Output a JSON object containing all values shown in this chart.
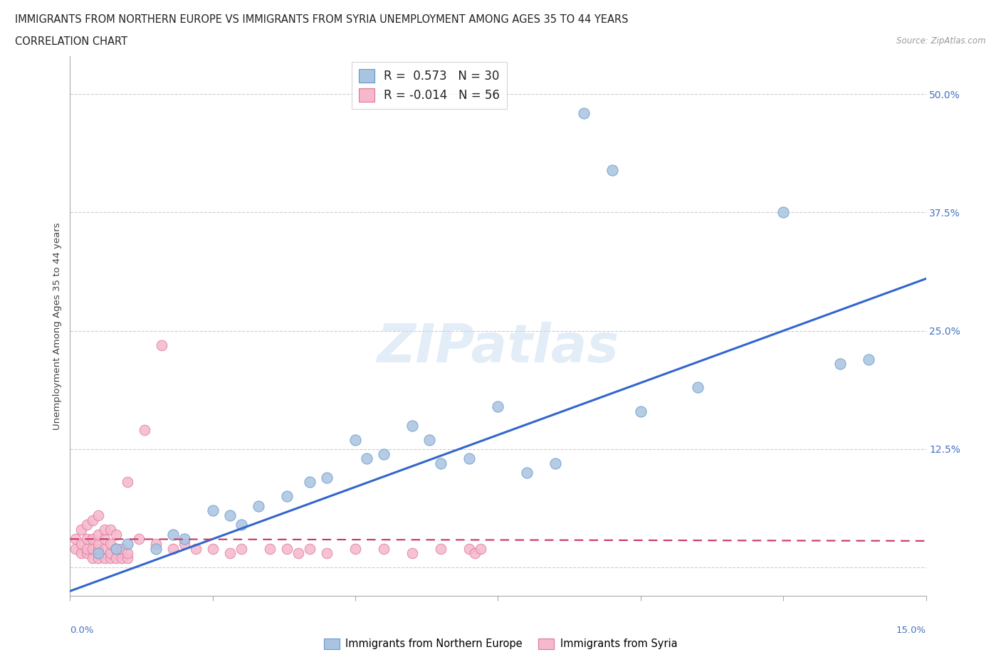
{
  "title_line1": "IMMIGRANTS FROM NORTHERN EUROPE VS IMMIGRANTS FROM SYRIA UNEMPLOYMENT AMONG AGES 35 TO 44 YEARS",
  "title_line2": "CORRELATION CHART",
  "source_text": "Source: ZipAtlas.com",
  "ylabel": "Unemployment Among Ages 35 to 44 years",
  "watermark": "ZIPatlas",
  "blue_R": 0.573,
  "blue_N": 30,
  "pink_R": -0.014,
  "pink_N": 56,
  "blue_color": "#a8c4e0",
  "blue_edge": "#6699cc",
  "pink_color": "#f5b8cc",
  "pink_edge": "#dd7799",
  "trend_blue": "#3366cc",
  "trend_pink": "#cc3366",
  "tick_color": "#4472c4",
  "grid_color": "#cccccc",
  "bg_color": "#ffffff",
  "xmin": 0.0,
  "xmax": 0.15,
  "ymin": -0.03,
  "ymax": 0.54,
  "yticks": [
    0.0,
    0.125,
    0.25,
    0.375,
    0.5
  ],
  "ytick_labels": [
    "",
    "12.5%",
    "25.0%",
    "37.5%",
    "50.0%"
  ],
  "blue_x": [
    0.005,
    0.008,
    0.01,
    0.015,
    0.018,
    0.02,
    0.025,
    0.028,
    0.03,
    0.033,
    0.038,
    0.042,
    0.045,
    0.05,
    0.052,
    0.055,
    0.06,
    0.063,
    0.065,
    0.07,
    0.075,
    0.08,
    0.085,
    0.09,
    0.095,
    0.1,
    0.11,
    0.125,
    0.135,
    0.14
  ],
  "blue_y": [
    0.015,
    0.02,
    0.025,
    0.02,
    0.035,
    0.03,
    0.06,
    0.055,
    0.045,
    0.065,
    0.075,
    0.09,
    0.095,
    0.135,
    0.115,
    0.12,
    0.15,
    0.135,
    0.11,
    0.115,
    0.17,
    0.1,
    0.11,
    0.48,
    0.42,
    0.165,
    0.19,
    0.375,
    0.215,
    0.22
  ],
  "pink_x": [
    0.001,
    0.001,
    0.002,
    0.002,
    0.002,
    0.003,
    0.003,
    0.003,
    0.003,
    0.004,
    0.004,
    0.004,
    0.004,
    0.005,
    0.005,
    0.005,
    0.005,
    0.005,
    0.006,
    0.006,
    0.006,
    0.006,
    0.007,
    0.007,
    0.007,
    0.007,
    0.008,
    0.008,
    0.008,
    0.009,
    0.009,
    0.01,
    0.01,
    0.01,
    0.012,
    0.013,
    0.015,
    0.016,
    0.018,
    0.02,
    0.022,
    0.025,
    0.028,
    0.03,
    0.035,
    0.038,
    0.04,
    0.042,
    0.045,
    0.05,
    0.055,
    0.06,
    0.065,
    0.07,
    0.071,
    0.072
  ],
  "pink_y": [
    0.02,
    0.03,
    0.015,
    0.025,
    0.04,
    0.015,
    0.02,
    0.03,
    0.045,
    0.01,
    0.02,
    0.03,
    0.05,
    0.01,
    0.02,
    0.025,
    0.035,
    0.055,
    0.01,
    0.02,
    0.03,
    0.04,
    0.01,
    0.015,
    0.025,
    0.04,
    0.01,
    0.02,
    0.035,
    0.01,
    0.02,
    0.01,
    0.015,
    0.09,
    0.03,
    0.145,
    0.025,
    0.235,
    0.02,
    0.025,
    0.02,
    0.02,
    0.015,
    0.02,
    0.02,
    0.02,
    0.015,
    0.02,
    0.015,
    0.02,
    0.02,
    0.015,
    0.02,
    0.02,
    0.015,
    0.02
  ],
  "blue_trend_x0": 0.0,
  "blue_trend_y0": -0.025,
  "blue_trend_x1": 0.15,
  "blue_trend_y1": 0.305,
  "pink_trend_x0": 0.0,
  "pink_trend_y0": 0.03,
  "pink_trend_x1": 0.15,
  "pink_trend_y1": 0.028
}
